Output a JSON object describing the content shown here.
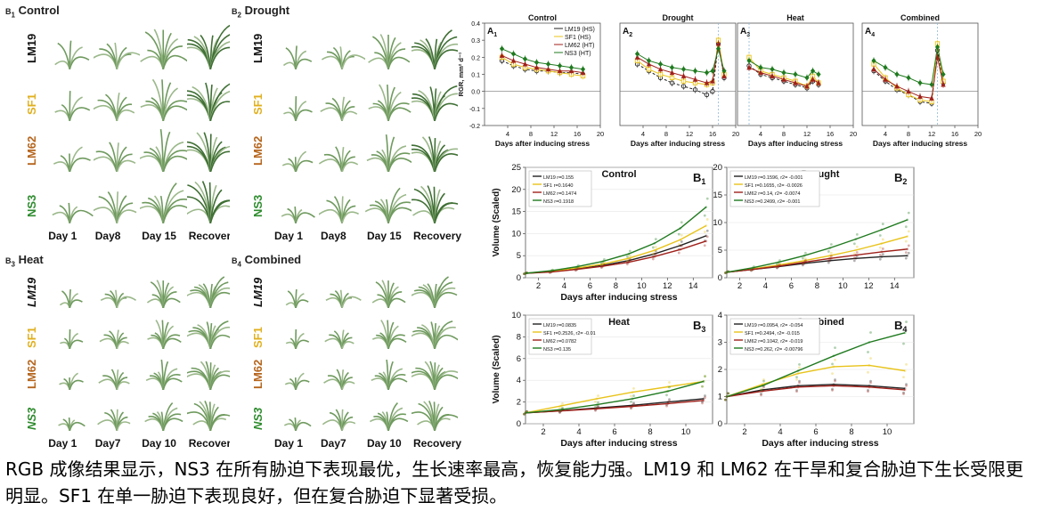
{
  "photo_panels": [
    {
      "id": "B1",
      "label": "B",
      "sub": "1",
      "title": "Control",
      "rows": [
        "LM19",
        "SF1",
        "LM62",
        "NS3"
      ],
      "days": [
        "Day 1",
        "Day8",
        "Day 15",
        "Recovery"
      ]
    },
    {
      "id": "B2",
      "label": "B",
      "sub": "2",
      "title": "Drought",
      "rows": [
        "LM19",
        "SF1",
        "LM62",
        "NS3"
      ],
      "days": [
        "Day 1",
        "Day8",
        "Day 15",
        "Recovery"
      ]
    },
    {
      "id": "B3",
      "label": "B",
      "sub": "3",
      "title": "Heat",
      "rows": [
        "LM19",
        "SF1",
        "LM62",
        "NS3"
      ],
      "days": [
        "Day 1",
        "Day7",
        "Day 10",
        "Recovery"
      ]
    },
    {
      "id": "B4",
      "label": "B",
      "sub": "4",
      "title": "Combined",
      "rows": [
        "LM19",
        "SF1",
        "LM62",
        "NS3"
      ],
      "days": [
        "Day 1",
        "Day7",
        "Day 10",
        "Recovery"
      ]
    }
  ],
  "row_colors": {
    "LM19": "#111111",
    "SF1": "#e0b020",
    "LM62": "#b5651d",
    "NS3": "#2e8b2e"
  },
  "rgr_legend": [
    "LM19 (HS)",
    "SF1   (HS)",
    "LM62 (HT)",
    "NS3   (HT)"
  ],
  "chart_data": [
    {
      "type": "line",
      "group": "RGR",
      "id": "A1",
      "panel_label": "A",
      "panel_sub": "1",
      "title": "Control",
      "xlabel": "Days after inducing stress",
      "ylabel": "RGR, mm² d⁻¹",
      "xlim": [
        0,
        20
      ],
      "ylim": [
        -0.2,
        0.4
      ],
      "xticks": [
        "4",
        "8",
        "12",
        "16",
        "20"
      ],
      "yticks": [
        "-0.2",
        "-0.1",
        "0.0",
        "0.1",
        "0.2",
        "0.3",
        "0.4"
      ],
      "series": [
        {
          "name": "LM19",
          "x": [
            3,
            5,
            7,
            9,
            11,
            13,
            15,
            17
          ],
          "values": [
            0.18,
            0.15,
            0.13,
            0.12,
            0.12,
            0.11,
            0.11,
            0.1
          ]
        },
        {
          "name": "SF1",
          "x": [
            3,
            5,
            7,
            9,
            11,
            13,
            15,
            17
          ],
          "values": [
            0.2,
            0.16,
            0.14,
            0.13,
            0.12,
            0.11,
            0.1,
            0.09
          ]
        },
        {
          "name": "LM62",
          "x": [
            3,
            5,
            7,
            9,
            11,
            13,
            15,
            17
          ],
          "values": [
            0.21,
            0.18,
            0.16,
            0.14,
            0.13,
            0.12,
            0.12,
            0.11
          ]
        },
        {
          "name": "NS3",
          "x": [
            3,
            5,
            7,
            9,
            11,
            13,
            15,
            17
          ],
          "values": [
            0.25,
            0.22,
            0.19,
            0.17,
            0.16,
            0.15,
            0.14,
            0.13
          ]
        }
      ]
    },
    {
      "type": "line",
      "group": "RGR",
      "id": "A2",
      "panel_label": "A",
      "panel_sub": "2",
      "title": "Drought",
      "xlabel": "Days after inducing stress",
      "ylabel": "",
      "xlim": [
        0,
        20
      ],
      "ylim": [
        -0.2,
        0.4
      ],
      "xticks": [
        "4",
        "8",
        "12",
        "16",
        "20"
      ],
      "yticks": [],
      "series": [
        {
          "name": "LM19",
          "x": [
            3,
            5,
            7,
            9,
            11,
            13,
            15,
            16,
            17,
            18
          ],
          "values": [
            0.16,
            0.12,
            0.08,
            0.05,
            0.03,
            0.01,
            -0.02,
            0.0,
            0.28,
            0.08
          ]
        },
        {
          "name": "SF1",
          "x": [
            3,
            5,
            7,
            9,
            11,
            13,
            15,
            16,
            17,
            18
          ],
          "values": [
            0.18,
            0.13,
            0.1,
            0.08,
            0.06,
            0.05,
            0.04,
            0.05,
            0.3,
            0.1
          ]
        },
        {
          "name": "LM62",
          "x": [
            3,
            5,
            7,
            9,
            11,
            13,
            15,
            16,
            17,
            18
          ],
          "values": [
            0.2,
            0.16,
            0.13,
            0.11,
            0.09,
            0.07,
            0.05,
            0.06,
            0.28,
            0.09
          ]
        },
        {
          "name": "NS3",
          "x": [
            3,
            5,
            7,
            9,
            11,
            13,
            15,
            16,
            17,
            18
          ],
          "values": [
            0.22,
            0.18,
            0.16,
            0.14,
            0.13,
            0.12,
            0.11,
            0.12,
            0.25,
            0.12
          ]
        }
      ]
    },
    {
      "type": "line",
      "group": "RGR",
      "id": "A3",
      "panel_label": "A",
      "panel_sub": "3",
      "title": "Heat",
      "xlabel": "Days after inducing stress",
      "ylabel": "",
      "xlim": [
        0,
        20
      ],
      "ylim": [
        -0.2,
        0.4
      ],
      "xticks": [
        "4",
        "8",
        "12",
        "16",
        "20"
      ],
      "yticks": [],
      "series": [
        {
          "name": "LM19",
          "x": [
            2,
            4,
            6,
            8,
            10,
            12,
            13,
            14
          ],
          "values": [
            0.15,
            0.1,
            0.08,
            0.06,
            0.04,
            0.02,
            0.06,
            0.04
          ]
        },
        {
          "name": "SF1",
          "x": [
            2,
            4,
            6,
            8,
            10,
            12,
            13,
            14
          ],
          "values": [
            0.2,
            0.12,
            0.1,
            0.08,
            0.06,
            0.03,
            0.09,
            0.05
          ]
        },
        {
          "name": "LM62",
          "x": [
            2,
            4,
            6,
            8,
            10,
            12,
            13,
            14
          ],
          "values": [
            0.14,
            0.11,
            0.09,
            0.07,
            0.05,
            0.03,
            0.07,
            0.05
          ]
        },
        {
          "name": "NS3",
          "x": [
            2,
            4,
            6,
            8,
            10,
            12,
            13,
            14
          ],
          "values": [
            0.18,
            0.14,
            0.13,
            0.11,
            0.1,
            0.08,
            0.12,
            0.1
          ]
        }
      ]
    },
    {
      "type": "line",
      "group": "RGR",
      "id": "A4",
      "panel_label": "A",
      "panel_sub": "4",
      "title": "Combined",
      "xlabel": "Days after inducing stress",
      "ylabel": "",
      "xlim": [
        0,
        20
      ],
      "ylim": [
        -0.2,
        0.4
      ],
      "xticks": [
        "4",
        "8",
        "12",
        "16",
        "20"
      ],
      "yticks": [],
      "series": [
        {
          "name": "LM19",
          "x": [
            2,
            4,
            6,
            8,
            10,
            12,
            13,
            14
          ],
          "values": [
            0.12,
            0.06,
            0.01,
            -0.02,
            -0.06,
            -0.07,
            0.24,
            0.05
          ]
        },
        {
          "name": "SF1",
          "x": [
            2,
            4,
            6,
            8,
            10,
            12,
            13,
            14
          ],
          "values": [
            0.16,
            0.08,
            0.02,
            -0.02,
            -0.05,
            -0.06,
            0.28,
            0.06
          ]
        },
        {
          "name": "LM62",
          "x": [
            2,
            4,
            6,
            8,
            10,
            12,
            13,
            14
          ],
          "values": [
            0.13,
            0.07,
            0.03,
            0.0,
            -0.03,
            -0.04,
            0.2,
            0.04
          ]
        },
        {
          "name": "NS3",
          "x": [
            2,
            4,
            6,
            8,
            10,
            12,
            13,
            14
          ],
          "values": [
            0.18,
            0.14,
            0.1,
            0.08,
            0.05,
            0.04,
            0.26,
            0.1
          ]
        }
      ]
    },
    {
      "type": "line",
      "group": "Volume",
      "id": "B1",
      "panel_label": "B",
      "panel_sub": "1",
      "title": "Control",
      "xlabel": "Days after inducing stress",
      "ylabel": "Volume (Scaled)",
      "xlim": [
        1,
        15.5
      ],
      "ylim": [
        0,
        25
      ],
      "xticks": [
        "2",
        "4",
        "6",
        "8",
        "10",
        "12",
        "14"
      ],
      "yticks": [
        "0",
        "5",
        "10",
        "15",
        "20",
        "25"
      ],
      "legend": [
        "LM19 r=0.155",
        "SF1 r=0.1640",
        "LM62 r=0.1474",
        "NS3 r=0.1918"
      ],
      "series": [
        {
          "name": "LM19",
          "x": [
            1,
            3,
            5,
            7,
            9,
            11,
            13,
            15
          ],
          "values": [
            1,
            1.4,
            2,
            2.8,
            3.9,
            5.4,
            7.3,
            9.5
          ]
        },
        {
          "name": "SF1",
          "x": [
            1,
            3,
            5,
            7,
            9,
            11,
            13,
            15
          ],
          "values": [
            1,
            1.5,
            2.2,
            3.1,
            4.4,
            6.2,
            8.6,
            11.8
          ]
        },
        {
          "name": "LM62",
          "x": [
            1,
            3,
            5,
            7,
            9,
            11,
            13,
            15
          ],
          "values": [
            1,
            1.3,
            1.9,
            2.6,
            3.5,
            4.8,
            6.4,
            8.3
          ]
        },
        {
          "name": "NS3",
          "x": [
            1,
            3,
            5,
            7,
            9,
            11,
            13,
            15
          ],
          "values": [
            1,
            1.6,
            2.5,
            3.7,
            5.4,
            7.8,
            11.2,
            16
          ]
        }
      ]
    },
    {
      "type": "line",
      "group": "Volume",
      "id": "B2",
      "panel_label": "B",
      "panel_sub": "2",
      "title": "Drought",
      "xlabel": "",
      "ylabel": "",
      "xlim": [
        1,
        15.5
      ],
      "ylim": [
        0,
        20
      ],
      "xticks": [
        "2",
        "4",
        "6",
        "8",
        "10",
        "12",
        "14"
      ],
      "yticks": [
        "0",
        "5",
        "10",
        "15",
        "20"
      ],
      "legend": [
        "LM19 r=0.1596, r2= -0.001",
        "SF1 r=0.1655, r2= -0.0026",
        "LM62 r=0.14, r2= -0.0074",
        "NS3 r=0.2499, r2= -0.001"
      ],
      "series": [
        {
          "name": "LM19",
          "x": [
            1,
            3,
            5,
            7,
            9,
            11,
            13,
            15
          ],
          "values": [
            1,
            1.5,
            2,
            2.6,
            3.1,
            3.5,
            3.8,
            4
          ]
        },
        {
          "name": "SF1",
          "x": [
            1,
            3,
            5,
            7,
            9,
            11,
            13,
            15
          ],
          "values": [
            1,
            1.6,
            2.3,
            3.1,
            4,
            5,
            6.2,
            7.5
          ]
        },
        {
          "name": "LM62",
          "x": [
            1,
            3,
            5,
            7,
            9,
            11,
            13,
            15
          ],
          "values": [
            1,
            1.5,
            2.1,
            2.8,
            3.5,
            4.1,
            4.7,
            5.2
          ]
        },
        {
          "name": "NS3",
          "x": [
            1,
            3,
            5,
            7,
            9,
            11,
            13,
            15
          ],
          "values": [
            1,
            1.8,
            2.8,
            4,
            5.4,
            7,
            8.7,
            10.5
          ]
        }
      ]
    },
    {
      "type": "line",
      "group": "Volume",
      "id": "B3",
      "panel_label": "B",
      "panel_sub": "3",
      "title": "Heat",
      "xlabel": "Days after inducing stress",
      "ylabel": "Volume (Scaled)",
      "xlim": [
        1,
        11.5
      ],
      "ylim": [
        0,
        10
      ],
      "xticks": [
        "2",
        "4",
        "6",
        "8",
        "10"
      ],
      "yticks": [
        "0",
        "2",
        "4",
        "6",
        "8",
        "10"
      ],
      "legend": [
        "LM19 r=0.0835",
        "SF1 r=0.2526, r2= -0.01",
        "LM62 r=0.0782",
        "NS3 r=0.135"
      ],
      "series": [
        {
          "name": "LM19",
          "x": [
            1,
            3,
            5,
            7,
            9,
            11
          ],
          "values": [
            1,
            1.2,
            1.45,
            1.7,
            2,
            2.3
          ]
        },
        {
          "name": "SF1",
          "x": [
            1,
            3,
            5,
            7,
            9,
            11
          ],
          "values": [
            1,
            1.65,
            2.3,
            2.9,
            3.4,
            3.9
          ]
        },
        {
          "name": "LM62",
          "x": [
            1,
            3,
            5,
            7,
            9,
            11
          ],
          "values": [
            1,
            1.18,
            1.38,
            1.6,
            1.85,
            2.15
          ]
        },
        {
          "name": "NS3",
          "x": [
            1,
            3,
            5,
            7,
            9,
            11
          ],
          "values": [
            1,
            1.3,
            1.75,
            2.3,
            3,
            3.9
          ]
        }
      ]
    },
    {
      "type": "line",
      "group": "Volume",
      "id": "B4",
      "panel_label": "B",
      "panel_sub": "4",
      "title": "Combined",
      "xlabel": "Days after inducing stress",
      "ylabel": "",
      "xlim": [
        1,
        11.5
      ],
      "ylim": [
        0,
        4
      ],
      "xticks": [
        "2",
        "4",
        "6",
        "8",
        "10"
      ],
      "yticks": [
        "0",
        "1",
        "2",
        "3",
        "4"
      ],
      "legend": [
        "LM19 r=0.0954, r2= -0.054",
        "SF1 r=0.2494, r2= -0.015",
        "LM62 r=0.1042, r2= -0.019",
        "NS3 r=0.262, r2= -0.00796"
      ],
      "series": [
        {
          "name": "LM19",
          "x": [
            1,
            3,
            5,
            7,
            9,
            11
          ],
          "values": [
            1,
            1.25,
            1.4,
            1.45,
            1.4,
            1.3
          ]
        },
        {
          "name": "SF1",
          "x": [
            1,
            3,
            5,
            7,
            9,
            11
          ],
          "values": [
            1,
            1.45,
            1.85,
            2.1,
            2.15,
            1.95
          ]
        },
        {
          "name": "LM62",
          "x": [
            1,
            3,
            5,
            7,
            9,
            11
          ],
          "values": [
            1,
            1.2,
            1.35,
            1.4,
            1.35,
            1.25
          ]
        },
        {
          "name": "NS3",
          "x": [
            1,
            3,
            5,
            7,
            9,
            11
          ],
          "values": [
            1,
            1.4,
            1.95,
            2.5,
            3,
            3.35
          ]
        }
      ]
    }
  ],
  "series_colors": {
    "LM19": "#222222",
    "SF1": "#e8c31a",
    "LM62": "#a0201a",
    "NS3": "#1f7a1f"
  },
  "caption": "RGB 成像结果显示，NS3 在所有胁迫下表现最优，生长速率最高，恢复能力强。LM19 和 LM62 在干旱和复合胁迫下生长受限更明显。SF1 在单一胁迫下表现良好，但在复合胁迫下显著受损。"
}
